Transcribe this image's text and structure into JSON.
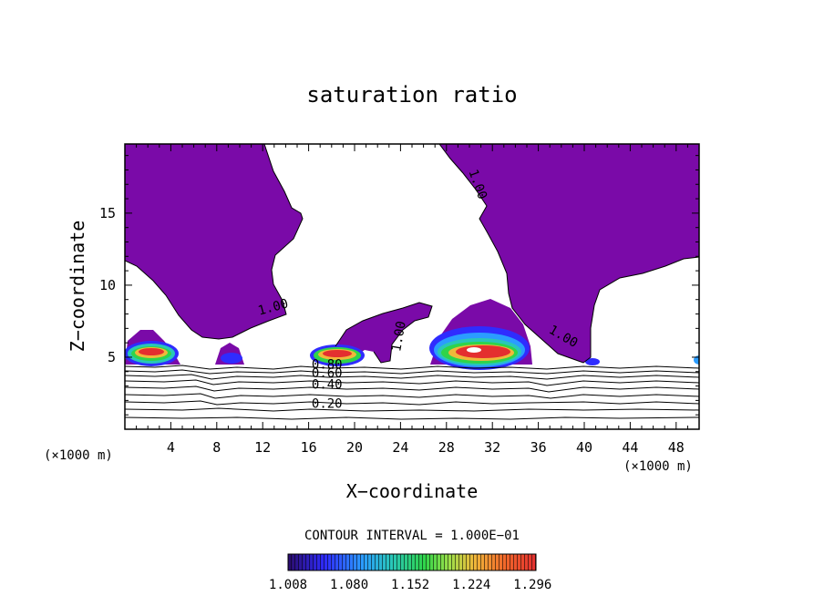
{
  "chart_data": {
    "type": "contour",
    "title": "saturation ratio",
    "xlabel": "X−coordinate",
    "ylabel": "Z−coordinate",
    "x_unit_left": "(×1000 m)",
    "x_unit_right": "(×1000 m)",
    "xlim": [
      0,
      50
    ],
    "ylim": [
      0,
      19.8
    ],
    "x_ticks": [
      4,
      8,
      12,
      16,
      20,
      24,
      28,
      32,
      36,
      40,
      44,
      48
    ],
    "y_ticks": [
      5,
      10,
      15
    ],
    "contour_interval_text": "CONTOUR INTERVAL = 1.000E−01",
    "contour_labels": [
      {
        "text": "0.20",
        "x": 17.6,
        "z": 1.5
      },
      {
        "text": "0.40",
        "x": 17.6,
        "z": 2.8
      },
      {
        "text": "0.60",
        "x": 17.6,
        "z": 3.6
      },
      {
        "text": "0.80",
        "x": 17.6,
        "z": 4.2
      },
      {
        "text": "1.00",
        "x": 13.0,
        "z": 8.2
      },
      {
        "text": "1.00",
        "x": 24.2,
        "z": 6.4
      },
      {
        "text": "1.00",
        "x": 38.0,
        "z": 6.2
      },
      {
        "text": "1.00",
        "x": 30.4,
        "z": 16.9
      }
    ],
    "colorbar": {
      "ticks": [
        "1.008",
        "1.080",
        "1.152",
        "1.224",
        "1.296"
      ],
      "range": [
        1.008,
        1.3
      ],
      "colors": [
        "#2a0c6a",
        "#2f2cff",
        "#2b9cff",
        "#29c7b8",
        "#2fd44a",
        "#9de04a",
        "#f0b83a",
        "#f26a2a",
        "#e42f2f"
      ]
    },
    "regions": {
      "saturated_color": "#7a0aa8",
      "max_color": "#ffffff"
    }
  }
}
